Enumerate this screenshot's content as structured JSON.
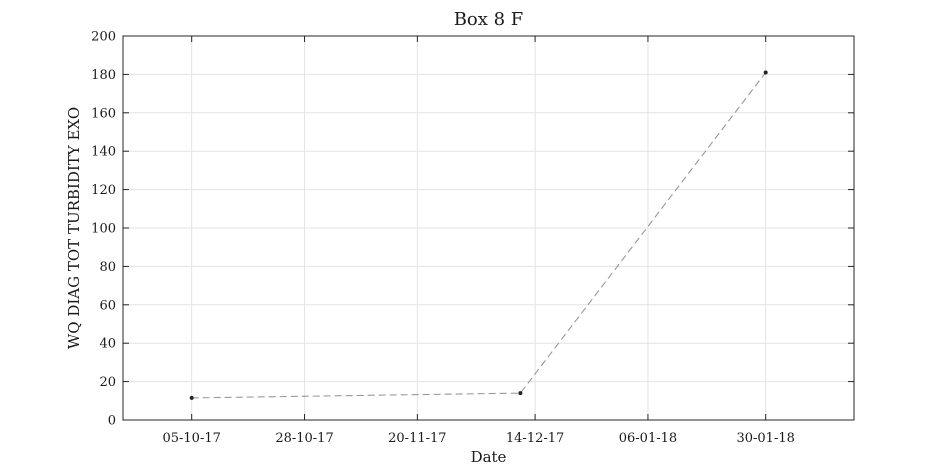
{
  "chart_data": {
    "type": "line",
    "title": "Box 8 F",
    "xlabel": "Date",
    "ylabel": "WQ DIAG TOT TURBIDITY EXO",
    "x_tick_labels": [
      "05-10-17",
      "28-10-17",
      "20-11-17",
      "14-12-17",
      "06-01-18",
      "30-01-18"
    ],
    "x_tick_dates": [
      "2017-10-05",
      "2017-10-28",
      "2017-11-20",
      "2017-12-14",
      "2018-01-06",
      "2018-01-30"
    ],
    "xlim": [
      "2017-09-21",
      "2018-02-17"
    ],
    "ylim": [
      0,
      200
    ],
    "y_ticks": [
      0,
      20,
      40,
      60,
      80,
      100,
      120,
      140,
      160,
      180,
      200
    ],
    "grid": true,
    "series": [
      {
        "x": [
          "2017-10-05",
          "2017-12-11",
          "2018-01-30"
        ],
        "y": [
          11.5,
          14,
          181
        ],
        "line_style": "dashed",
        "line_color": "#999999",
        "marker_color": "#222222"
      }
    ]
  }
}
